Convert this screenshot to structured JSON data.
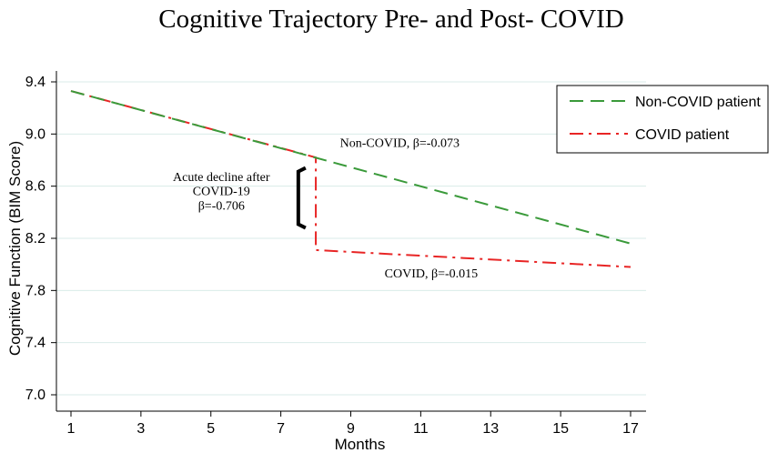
{
  "chart_data": {
    "type": "line",
    "title": "Cognitive Trajectory Pre- and Post- COVID",
    "xlabel": "Months",
    "ylabel": "Cognitive Function (BIM Score)",
    "xlim": [
      1,
      17
    ],
    "ylim": [
      7.0,
      9.4
    ],
    "x_ticks": [
      1,
      3,
      5,
      7,
      9,
      11,
      13,
      15,
      17
    ],
    "y_ticks": [
      7.0,
      7.4,
      7.8,
      8.2,
      8.6,
      9.0,
      9.4
    ],
    "x_tick_labels": [
      "1",
      "3",
      "5",
      "7",
      "9",
      "11",
      "13",
      "15",
      "17"
    ],
    "y_tick_labels": [
      "7.0",
      "7.4",
      "7.8",
      "8.2",
      "8.6",
      "9.0",
      "9.4"
    ],
    "grid": "horizontal",
    "series": [
      {
        "name": "Non-COVID patient",
        "color": "#3a9a3a",
        "style": "dashed",
        "x": [
          1,
          17
        ],
        "y": [
          9.33,
          8.16
        ]
      },
      {
        "name": "COVID patient",
        "color": "#e82525",
        "style": "dash-dot",
        "x": [
          1,
          8,
          8,
          17
        ],
        "y": [
          9.33,
          8.82,
          8.11,
          7.98
        ]
      }
    ],
    "legend": {
      "position": "top-right",
      "entries": [
        "Non-COVID patient",
        "COVID patient"
      ]
    },
    "annotations": {
      "non_covid_label": "Non-COVID, β=-0.073",
      "covid_label": "COVID, β=-0.015",
      "acute_line1": "Acute decline after",
      "acute_line2": "COVID-19",
      "acute_line3": "β=-0.706"
    },
    "bracket": {
      "x": 7.5,
      "y_top": 8.74,
      "y_bottom": 8.28
    }
  }
}
